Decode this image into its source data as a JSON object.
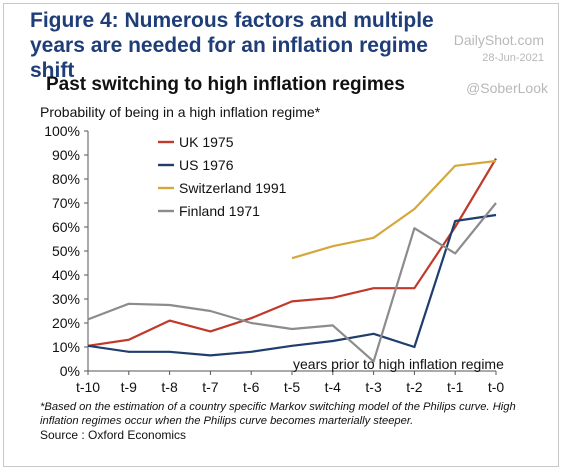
{
  "figure": {
    "title": "Figure 4: Numerous factors and multiple years are needed for an inflation regime shift"
  },
  "watermark": {
    "site": "DailyShot.com",
    "date": "28-Jun-2021",
    "handle": "@SoberLook"
  },
  "footnote": "*Based on the estimation of a country specific Markov switching model of the Philips curve. High inflation regimes occur when the Philips curve becomes marterially steeper.",
  "source": "Source : Oxford Economics",
  "chart_data": {
    "type": "line",
    "title": "Past switching to high inflation regimes",
    "ylabel": "Probability of being in a high inflation regime*",
    "xlabel": "",
    "annotation": "years prior to high inflation regime",
    "categories": [
      "t-10",
      "t-9",
      "t-8",
      "t-7",
      "t-6",
      "t-5",
      "t-4",
      "t-3",
      "t-2",
      "t-1",
      "t-0"
    ],
    "ylim": [
      0,
      100
    ],
    "yticks": [
      0,
      10,
      20,
      30,
      40,
      50,
      60,
      70,
      80,
      90,
      100
    ],
    "y_tick_labels": [
      "0%",
      "10%",
      "20%",
      "30%",
      "40%",
      "50%",
      "60%",
      "70%",
      "80%",
      "90%",
      "100%"
    ],
    "grid": false,
    "legend_position": "top-left",
    "series": [
      {
        "name": "UK 1975",
        "color": "#c0392b",
        "values": [
          10.5,
          13,
          21,
          16.5,
          22,
          29,
          30.5,
          34.5,
          34.5,
          60,
          88.5
        ]
      },
      {
        "name": "US 1976",
        "color": "#1f3e6e",
        "values": [
          10.5,
          8,
          8,
          6.5,
          8,
          10.5,
          12.5,
          15.5,
          10,
          62.5,
          65
        ]
      },
      {
        "name": "Switzerland 1991",
        "color": "#d4a83a",
        "values": [
          null,
          null,
          null,
          null,
          null,
          47,
          52,
          55.5,
          67.5,
          85.5,
          87.5
        ]
      },
      {
        "name": "Finland 1971",
        "color": "#8c8c8c",
        "values": [
          21.5,
          28,
          27.5,
          25,
          20,
          17.5,
          19,
          4,
          59.5,
          49,
          70
        ]
      }
    ]
  }
}
